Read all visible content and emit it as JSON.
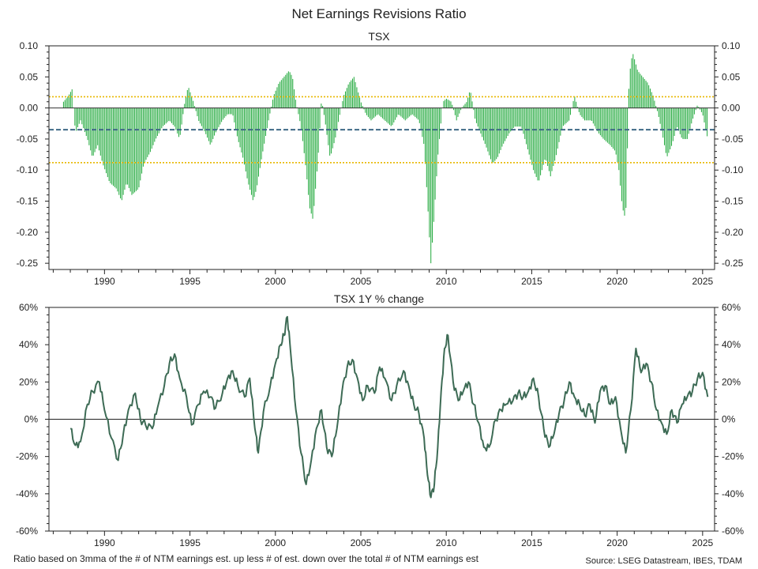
{
  "title": "Net Earnings Revisions Ratio",
  "footnote": "Ratio based on 3mma of the # of NTM earnings est. up less # of est. down over the total # of NTM earnings est",
  "source": "Source: LSEG Datastream, IBES, TDAM",
  "colors": {
    "bars": "#1fa83a",
    "mean_line": "#3f6a86",
    "band_lines": "#e8b800",
    "tsx_line": "#3d6b55",
    "axes": "#222222"
  },
  "chart_data": [
    {
      "type": "bar",
      "title": "TSX",
      "x_range": [
        1986.75,
        2025.7
      ],
      "ylim": [
        -0.26,
        0.1
      ],
      "yticks": [
        0.1,
        0.05,
        0.0,
        -0.05,
        -0.1,
        -0.15,
        -0.2,
        -0.25
      ],
      "ytick_labels": [
        "0.10",
        "0.05",
        "0.00",
        "-0.05",
        "-0.10",
        "-0.15",
        "-0.20",
        "-0.25"
      ],
      "xticks": [
        1990,
        1995,
        2000,
        2005,
        2010,
        2015,
        2020,
        2025
      ],
      "xtick_labels": [
        "1990",
        "1995",
        "2000",
        "2005",
        "2010",
        "2015",
        "2020",
        "2025"
      ],
      "reference_lines": [
        {
          "kind": "mean",
          "style": "dashed",
          "y": -0.035
        },
        {
          "kind": "upper_band",
          "style": "dotted",
          "y": 0.018
        },
        {
          "kind": "lower_band",
          "style": "dotted",
          "y": -0.088
        }
      ],
      "series": [
        {
          "anchors": [
            [
              1987.6,
              0.01
            ],
            [
              1987.9,
              0.02
            ],
            [
              1988.1,
              0.03
            ],
            [
              1988.3,
              -0.04
            ],
            [
              1988.6,
              -0.02
            ],
            [
              1989.0,
              -0.05
            ],
            [
              1989.3,
              -0.08
            ],
            [
              1989.6,
              -0.06
            ],
            [
              1989.9,
              -0.09
            ],
            [
              1990.3,
              -0.12
            ],
            [
              1990.7,
              -0.13
            ],
            [
              1991.0,
              -0.15
            ],
            [
              1991.3,
              -0.12
            ],
            [
              1991.6,
              -0.14
            ],
            [
              1992.0,
              -0.13
            ],
            [
              1992.3,
              -0.09
            ],
            [
              1992.7,
              -0.07
            ],
            [
              1993.0,
              -0.05
            ],
            [
              1993.4,
              -0.03
            ],
            [
              1993.8,
              -0.02
            ],
            [
              1994.1,
              -0.03
            ],
            [
              1994.4,
              -0.05
            ],
            [
              1994.7,
              0.01
            ],
            [
              1994.9,
              0.035
            ],
            [
              1995.2,
              0.01
            ],
            [
              1995.5,
              -0.02
            ],
            [
              1995.9,
              -0.04
            ],
            [
              1996.2,
              -0.06
            ],
            [
              1996.5,
              -0.04
            ],
            [
              1996.9,
              -0.02
            ],
            [
              1997.2,
              -0.01
            ],
            [
              1997.5,
              -0.01
            ],
            [
              1997.8,
              -0.05
            ],
            [
              1998.1,
              -0.08
            ],
            [
              1998.4,
              -0.12
            ],
            [
              1998.7,
              -0.15
            ],
            [
              1998.9,
              -0.13
            ],
            [
              1999.2,
              -0.08
            ],
            [
              1999.6,
              -0.02
            ],
            [
              1999.9,
              0.02
            ],
            [
              2000.2,
              0.04
            ],
            [
              2000.5,
              0.05
            ],
            [
              2000.8,
              0.06
            ],
            [
              2001.0,
              0.05
            ],
            [
              2001.2,
              0.01
            ],
            [
              2001.5,
              -0.03
            ],
            [
              2001.8,
              -0.1
            ],
            [
              2002.0,
              -0.16
            ],
            [
              2002.2,
              -0.18
            ],
            [
              2002.5,
              -0.08
            ],
            [
              2002.7,
              0.015
            ],
            [
              2002.9,
              -0.02
            ],
            [
              2003.2,
              -0.08
            ],
            [
              2003.5,
              -0.05
            ],
            [
              2003.7,
              -0.02
            ],
            [
              2004.0,
              0.02
            ],
            [
              2004.3,
              0.04
            ],
            [
              2004.6,
              0.05
            ],
            [
              2004.8,
              0.03
            ],
            [
              2005.0,
              0.01
            ],
            [
              2005.3,
              -0.01
            ],
            [
              2005.6,
              -0.02
            ],
            [
              2006.0,
              -0.01
            ],
            [
              2006.4,
              -0.02
            ],
            [
              2006.8,
              -0.03
            ],
            [
              2007.2,
              -0.01
            ],
            [
              2007.6,
              -0.02
            ],
            [
              2008.0,
              -0.01
            ],
            [
              2008.4,
              -0.02
            ],
            [
              2008.7,
              -0.06
            ],
            [
              2008.9,
              -0.15
            ],
            [
              2009.1,
              -0.25
            ],
            [
              2009.3,
              -0.17
            ],
            [
              2009.5,
              -0.08
            ],
            [
              2009.8,
              0.01
            ],
            [
              2010.0,
              0.015
            ],
            [
              2010.3,
              0.01
            ],
            [
              2010.6,
              -0.02
            ],
            [
              2010.9,
              0.0
            ],
            [
              2011.2,
              0.01
            ],
            [
              2011.4,
              0.03
            ],
            [
              2011.7,
              -0.02
            ],
            [
              2012.0,
              -0.04
            ],
            [
              2012.3,
              -0.06
            ],
            [
              2012.7,
              -0.09
            ],
            [
              2013.0,
              -0.08
            ],
            [
              2013.3,
              -0.06
            ],
            [
              2013.7,
              -0.04
            ],
            [
              2014.0,
              -0.03
            ],
            [
              2014.4,
              -0.03
            ],
            [
              2014.8,
              -0.07
            ],
            [
              2015.1,
              -0.1
            ],
            [
              2015.4,
              -0.12
            ],
            [
              2015.8,
              -0.08
            ],
            [
              2016.1,
              -0.11
            ],
            [
              2016.4,
              -0.08
            ],
            [
              2016.8,
              -0.03
            ],
            [
              2017.2,
              -0.02
            ],
            [
              2017.5,
              0.02
            ],
            [
              2017.8,
              -0.01
            ],
            [
              2018.1,
              -0.02
            ],
            [
              2018.5,
              -0.02
            ],
            [
              2018.9,
              -0.04
            ],
            [
              2019.2,
              -0.05
            ],
            [
              2019.6,
              -0.06
            ],
            [
              2019.9,
              -0.07
            ],
            [
              2020.1,
              -0.1
            ],
            [
              2020.3,
              -0.16
            ],
            [
              2020.5,
              -0.18
            ],
            [
              2020.7,
              0.05
            ],
            [
              2020.9,
              0.09
            ],
            [
              2021.2,
              0.06
            ],
            [
              2021.5,
              0.05
            ],
            [
              2021.8,
              0.04
            ],
            [
              2022.1,
              0.02
            ],
            [
              2022.4,
              -0.01
            ],
            [
              2022.7,
              -0.05
            ],
            [
              2022.9,
              -0.08
            ],
            [
              2023.2,
              -0.06
            ],
            [
              2023.5,
              -0.03
            ],
            [
              2023.8,
              -0.05
            ],
            [
              2024.1,
              -0.05
            ],
            [
              2024.4,
              -0.02
            ],
            [
              2024.7,
              0.005
            ],
            [
              2025.0,
              -0.01
            ],
            [
              2025.3,
              -0.05
            ]
          ]
        }
      ]
    },
    {
      "type": "line",
      "title": "TSX 1Y % change",
      "x_range": [
        1986.75,
        2025.7
      ],
      "ylim": [
        -60,
        60
      ],
      "yticks": [
        60,
        40,
        20,
        0,
        -20,
        -40,
        -60
      ],
      "ytick_labels": [
        "60%",
        "40%",
        "20%",
        "0%",
        "-20%",
        "-40%",
        "-60%"
      ],
      "xticks": [
        1990,
        1995,
        2000,
        2005,
        2010,
        2015,
        2020,
        2025
      ],
      "xtick_labels": [
        "1990",
        "1995",
        "2000",
        "2005",
        "2010",
        "2015",
        "2020",
        "2025"
      ],
      "zero_line": 0,
      "series": [
        {
          "x": [
            1988.0,
            1988.3,
            1988.6,
            1989.0,
            1989.3,
            1989.7,
            1990.0,
            1990.4,
            1990.8,
            1991.1,
            1991.4,
            1991.8,
            1992.1,
            1992.4,
            1992.8,
            1993.1,
            1993.5,
            1993.8,
            1994.1,
            1994.4,
            1994.8,
            1995.1,
            1995.5,
            1995.8,
            1996.2,
            1996.5,
            1996.9,
            1997.2,
            1997.5,
            1997.8,
            1998.2,
            1998.5,
            1998.8,
            1999.0,
            1999.3,
            1999.7,
            2000.0,
            2000.3,
            2000.5,
            2000.7,
            2000.9,
            2001.2,
            2001.5,
            2001.8,
            2002.1,
            2002.4,
            2002.7,
            2003.0,
            2003.3,
            2003.6,
            2003.9,
            2004.2,
            2004.5,
            2004.8,
            2005.1,
            2005.4,
            2005.8,
            2006.1,
            2006.4,
            2006.8,
            2007.1,
            2007.5,
            2007.8,
            2008.1,
            2008.4,
            2008.7,
            2008.9,
            2009.1,
            2009.3,
            2009.5,
            2009.7,
            2009.9,
            2010.1,
            2010.4,
            2010.7,
            2011.0,
            2011.3,
            2011.6,
            2011.9,
            2012.2,
            2012.5,
            2012.9,
            2013.2,
            2013.5,
            2013.9,
            2014.2,
            2014.5,
            2014.8,
            2015.1,
            2015.4,
            2015.7,
            2016.0,
            2016.3,
            2016.6,
            2016.9,
            2017.2,
            2017.5,
            2017.8,
            2018.1,
            2018.4,
            2018.7,
            2019.0,
            2019.3,
            2019.6,
            2019.9,
            2020.2,
            2020.5,
            2020.8,
            2021.1,
            2021.4,
            2021.7,
            2022.0,
            2022.3,
            2022.6,
            2022.9,
            2023.2,
            2023.5,
            2023.8,
            2024.1,
            2024.4,
            2024.7,
            2025.0,
            2025.3
          ],
          "y": [
            -5,
            -14,
            -12,
            8,
            15,
            20,
            5,
            -10,
            -22,
            -8,
            5,
            14,
            0,
            -3,
            -5,
            6,
            18,
            30,
            35,
            22,
            12,
            -3,
            8,
            15,
            12,
            6,
            14,
            22,
            26,
            18,
            12,
            22,
            -5,
            -18,
            4,
            18,
            30,
            40,
            45,
            55,
            35,
            5,
            -18,
            -35,
            -22,
            -5,
            5,
            -15,
            -20,
            -5,
            15,
            28,
            32,
            22,
            10,
            18,
            14,
            28,
            22,
            10,
            18,
            26,
            18,
            8,
            3,
            -10,
            -30,
            -42,
            -35,
            -15,
            15,
            38,
            45,
            20,
            10,
            15,
            20,
            8,
            -2,
            -15,
            -15,
            0,
            5,
            8,
            10,
            14,
            12,
            15,
            22,
            12,
            -5,
            -15,
            -8,
            3,
            10,
            20,
            12,
            8,
            2,
            8,
            -2,
            15,
            18,
            8,
            12,
            -5,
            -18,
            5,
            38,
            25,
            30,
            20,
            5,
            -2,
            -8,
            5,
            -2,
            8,
            12,
            15,
            22,
            25,
            12
          ]
        }
      ]
    }
  ]
}
